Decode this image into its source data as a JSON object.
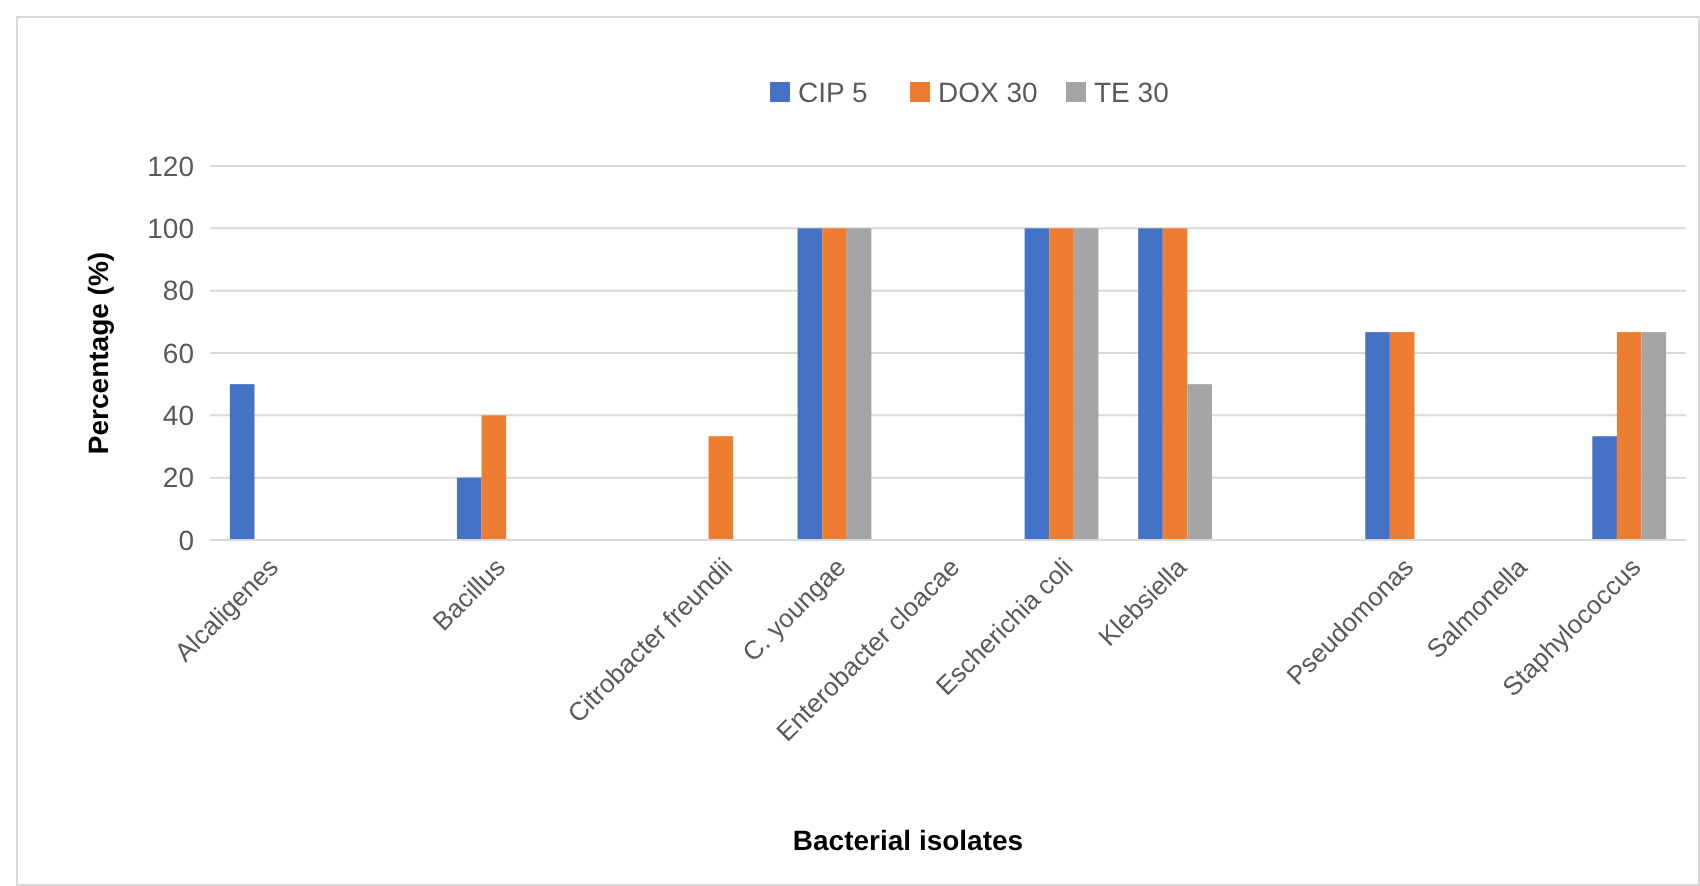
{
  "chart_data": {
    "type": "bar",
    "xlabel": "Bacterial isolates",
    "ylabel": "Percentage (%)",
    "categories": [
      "Alcaligenes",
      null,
      "Bacillus",
      null,
      "Citrobacter freundii",
      "C. youngae",
      "Enterobacter cloacae",
      "Escherichia coli",
      "Klebsiella",
      null,
      "Pseudomonas",
      "Salmonella",
      "Staphylococcus"
    ],
    "series": [
      {
        "name": "CIP 5",
        "color": "#4472c4",
        "values": [
          50,
          0,
          20,
          0,
          0,
          100,
          0,
          100,
          100,
          0,
          66.7,
          0,
          33.3
        ]
      },
      {
        "name": "DOX 30",
        "color": "#ed7d31",
        "values": [
          0,
          0,
          40,
          0,
          33.3,
          100,
          0,
          100,
          100,
          0,
          66.7,
          0,
          66.7
        ]
      },
      {
        "name": "TE 30",
        "color": "#a5a5a5",
        "values": [
          0,
          0,
          0,
          0,
          0,
          100,
          0,
          100,
          50,
          0,
          0,
          0,
          66.7
        ]
      }
    ],
    "ylim": [
      0,
      120
    ],
    "yticks": [
      0,
      20,
      40,
      60,
      80,
      100,
      120
    ],
    "grid": "y",
    "legend": "top"
  }
}
